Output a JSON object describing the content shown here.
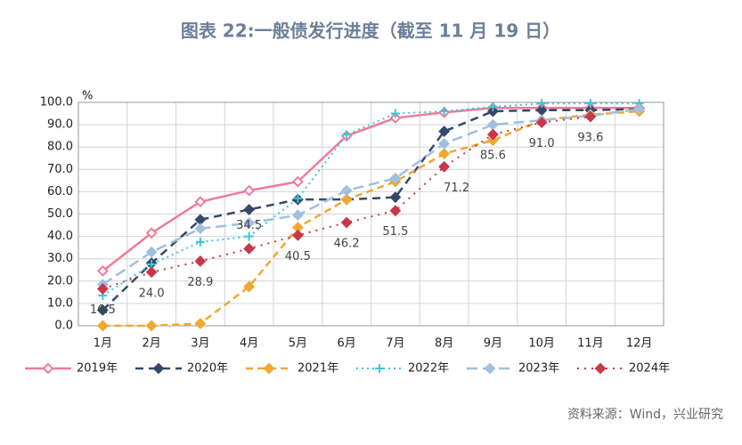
{
  "chart_data": {
    "type": "line",
    "title": "图表 22:一般债发行进度（截至 11 月 19 日）",
    "y_unit": "%",
    "source": "资料来源：Wind，兴业研究",
    "categories": [
      "1月",
      "2月",
      "3月",
      "4月",
      "5月",
      "6月",
      "7月",
      "8月",
      "9月",
      "10月",
      "11月",
      "12月"
    ],
    "ylim": [
      0,
      100
    ],
    "yticks": [
      {
        "value": 0,
        "label": "0.0"
      },
      {
        "value": 10,
        "label": "10.0"
      },
      {
        "value": 20,
        "label": "20.0"
      },
      {
        "value": 30,
        "label": "30.0"
      },
      {
        "value": 40,
        "label": "40.0"
      },
      {
        "value": 50,
        "label": "50.0"
      },
      {
        "value": 60,
        "label": "60.0"
      },
      {
        "value": 70,
        "label": "70.0"
      },
      {
        "value": 80,
        "label": "80.0"
      },
      {
        "value": 90,
        "label": "90.0"
      },
      {
        "value": 100,
        "label": "100.0"
      }
    ],
    "grid": true,
    "series": [
      {
        "name": "2019年",
        "color": "#f07a9a",
        "values": [
          24.5,
          41.5,
          55.5,
          60.5,
          64.5,
          85,
          93,
          95.5,
          97.5,
          97.5,
          97.5,
          97.5
        ]
      },
      {
        "name": "2020年",
        "color": "#34496a",
        "values": [
          7,
          28,
          47.5,
          52,
          56.5,
          56.5,
          57.5,
          87,
          96,
          96.5,
          96.5,
          97
        ]
      },
      {
        "name": "2021年",
        "color": "#f0a830",
        "values": [
          0,
          0,
          1,
          17.5,
          44,
          56.5,
          64.5,
          77,
          83,
          92,
          94.5,
          96
        ]
      },
      {
        "name": "2022年",
        "color": "#3cc8d8",
        "values": [
          13.5,
          27.5,
          37.5,
          40,
          57,
          85.5,
          95,
          96,
          98,
          99.5,
          99.5,
          99.5
        ]
      },
      {
        "name": "2023年",
        "color": "#9fc0e0",
        "values": [
          18.5,
          33,
          43.5,
          46,
          49.5,
          60.5,
          66,
          81.5,
          90,
          92,
          94,
          97
        ]
      },
      {
        "name": "2024年",
        "color": "#c8374a",
        "values": [
          16.5,
          24.0,
          28.9,
          34.5,
          40.5,
          46.2,
          51.5,
          71.2,
          85.6,
          91.0,
          93.6,
          null
        ],
        "value_labels": [
          "16.5",
          "24.0",
          "28.9",
          "34.5",
          "40.5",
          "46.2",
          "51.5",
          "71.2",
          "85.6",
          "91.0",
          "93.6",
          null
        ]
      }
    ]
  }
}
